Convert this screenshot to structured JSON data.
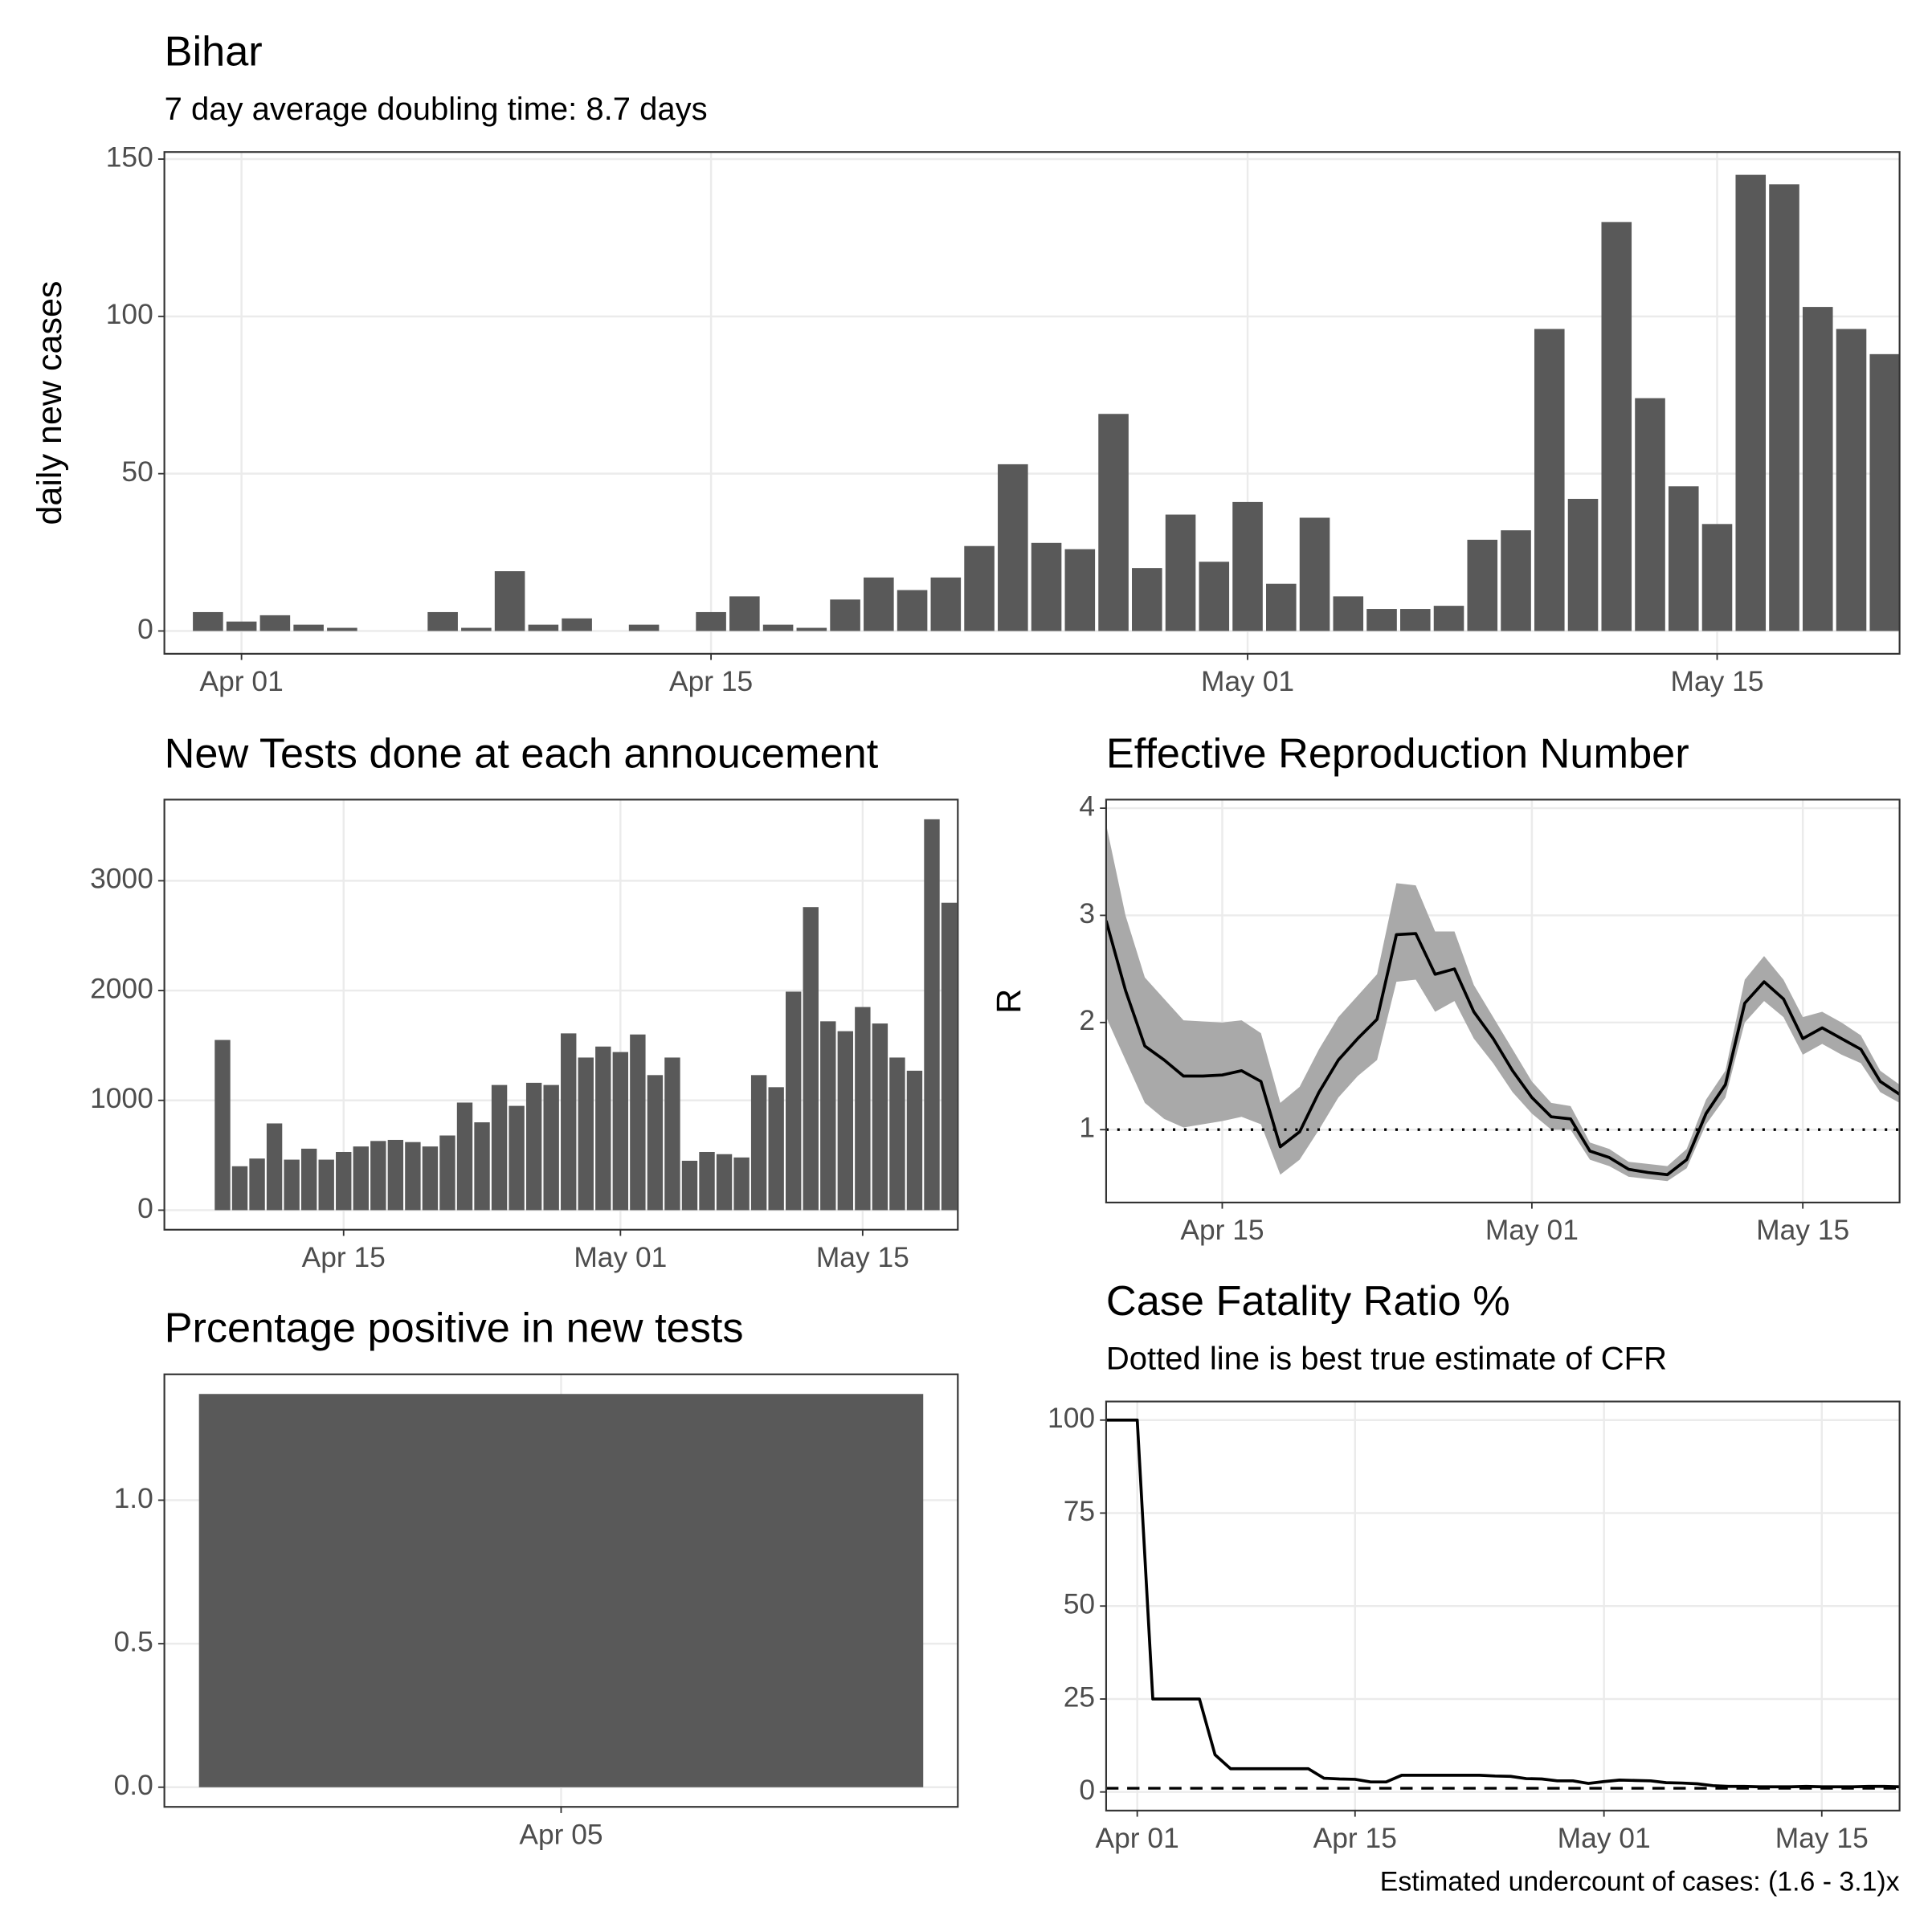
{
  "chart_data": [
    {
      "type": "bar",
      "title": "Bihar",
      "subtitle": "7 day average doubling time: 8.7 days",
      "y_label": "daily new cases",
      "x": [
        "Mar 31",
        "Apr 01",
        "Apr 02",
        "Apr 03",
        "Apr 04",
        "Apr 05",
        "Apr 06",
        "Apr 07",
        "Apr 08",
        "Apr 09",
        "Apr 10",
        "Apr 11",
        "Apr 12",
        "Apr 13",
        "Apr 14",
        "Apr 15",
        "Apr 16",
        "Apr 17",
        "Apr 18",
        "Apr 19",
        "Apr 20",
        "Apr 21",
        "Apr 22",
        "Apr 23",
        "Apr 24",
        "Apr 25",
        "Apr 26",
        "Apr 27",
        "Apr 28",
        "Apr 29",
        "Apr 30",
        "May 01",
        "May 02",
        "May 03",
        "May 04",
        "May 05",
        "May 06",
        "May 07",
        "May 08",
        "May 09",
        "May 10",
        "May 11",
        "May 12",
        "May 13",
        "May 14",
        "May 15",
        "May 16",
        "May 17",
        "May 18",
        "May 19",
        "May 20"
      ],
      "values": [
        6,
        3,
        5,
        2,
        1,
        0,
        0,
        6,
        1,
        19,
        2,
        4,
        0,
        2,
        0,
        6,
        11,
        2,
        1,
        10,
        17,
        13,
        17,
        27,
        53,
        28,
        26,
        69,
        20,
        37,
        22,
        41,
        15,
        36,
        11,
        7,
        7,
        8,
        29,
        32,
        96,
        42,
        130,
        74,
        46,
        34,
        145,
        142,
        103,
        96,
        88
      ],
      "color": "#595959",
      "ylim": [
        -7.25,
        152.25
      ],
      "yticks": [
        0,
        50,
        100,
        150
      ],
      "xticks": [
        "Apr 01",
        "Apr 15",
        "May 01",
        "May 15"
      ],
      "grid": true
    },
    {
      "type": "bar",
      "title": "New Tests done at each annoucement",
      "x": [
        "Apr 08",
        "Apr 09",
        "Apr 10",
        "Apr 11",
        "Apr 12",
        "Apr 13",
        "Apr 14",
        "Apr 15",
        "Apr 16",
        "Apr 17",
        "Apr 18",
        "Apr 19",
        "Apr 20",
        "Apr 21",
        "Apr 22",
        "Apr 23",
        "Apr 24",
        "Apr 25",
        "Apr 26",
        "Apr 27",
        "Apr 28",
        "Apr 29",
        "Apr 30",
        "May 01",
        "May 02",
        "May 03",
        "May 04",
        "May 05",
        "May 06",
        "May 07",
        "May 08",
        "May 09",
        "May 10",
        "May 11",
        "May 12",
        "May 13",
        "May 14",
        "May 15",
        "May 16",
        "May 17",
        "May 18",
        "May 19",
        "May 20"
      ],
      "values": [
        1550,
        400,
        470,
        790,
        460,
        560,
        460,
        530,
        580,
        630,
        640,
        620,
        580,
        680,
        980,
        800,
        1140,
        950,
        1160,
        1140,
        1610,
        1390,
        1490,
        1440,
        1600,
        1230,
        1390,
        450,
        530,
        510,
        480,
        1230,
        1120,
        1990,
        2760,
        1720,
        1630,
        1850,
        1700,
        1390,
        1270,
        3560,
        2800
      ],
      "color": "#595959",
      "ylim": [
        -178,
        3739
      ],
      "yticks": [
        0,
        1000,
        2000,
        3000
      ],
      "xticks": [
        "Apr 15",
        "May 01",
        "May 15"
      ],
      "grid": true
    },
    {
      "type": "line",
      "title": "Effective Reproduction Number",
      "y_label": "R",
      "x": [
        "Apr 09",
        "Apr 10",
        "Apr 11",
        "Apr 12",
        "Apr 13",
        "Apr 14",
        "Apr 15",
        "Apr 16",
        "Apr 17",
        "Apr 18",
        "Apr 19",
        "Apr 20",
        "Apr 21",
        "Apr 22",
        "Apr 23",
        "Apr 24",
        "Apr 25",
        "Apr 26",
        "Apr 27",
        "Apr 28",
        "Apr 29",
        "Apr 30",
        "May 01",
        "May 02",
        "May 03",
        "May 04",
        "May 05",
        "May 06",
        "May 07",
        "May 08",
        "May 09",
        "May 10",
        "May 11",
        "May 12",
        "May 13",
        "May 14",
        "May 15",
        "May 16",
        "May 17",
        "May 18",
        "May 19",
        "May 20"
      ],
      "values": [
        2.95,
        2.3,
        1.78,
        1.65,
        1.5,
        1.5,
        1.51,
        1.55,
        1.45,
        0.84,
        0.98,
        1.35,
        1.65,
        1.85,
        2.03,
        2.82,
        2.83,
        2.45,
        2.5,
        2.1,
        1.85,
        1.55,
        1.3,
        1.12,
        1.1,
        0.8,
        0.74,
        0.63,
        0.6,
        0.58,
        0.72,
        1.15,
        1.42,
        2.18,
        2.38,
        2.22,
        1.85,
        1.95,
        1.85,
        1.75,
        1.45,
        1.33
      ],
      "upper": [
        3.85,
        3.0,
        2.42,
        2.22,
        2.02,
        2.01,
        2.0,
        2.02,
        1.9,
        1.25,
        1.4,
        1.75,
        2.05,
        2.25,
        2.45,
        3.3,
        3.28,
        2.85,
        2.85,
        2.35,
        2.05,
        1.75,
        1.45,
        1.25,
        1.22,
        0.88,
        0.82,
        0.7,
        0.68,
        0.66,
        0.82,
        1.28,
        1.55,
        2.4,
        2.62,
        2.4,
        2.05,
        2.1,
        2.0,
        1.88,
        1.55,
        1.42
      ],
      "lower": [
        2.05,
        1.65,
        1.25,
        1.1,
        1.02,
        1.05,
        1.08,
        1.12,
        1.05,
        0.58,
        0.72,
        1.0,
        1.3,
        1.5,
        1.65,
        2.38,
        2.4,
        2.1,
        2.2,
        1.85,
        1.62,
        1.35,
        1.15,
        1.0,
        1.0,
        0.72,
        0.66,
        0.56,
        0.54,
        0.52,
        0.64,
        1.05,
        1.3,
        2.0,
        2.2,
        2.05,
        1.7,
        1.8,
        1.7,
        1.62,
        1.35,
        1.25
      ],
      "color": "#000000",
      "band_color": "#a9a9a9",
      "reference": 1,
      "reference_style": "dotted",
      "ylim": [
        0.32,
        4.08
      ],
      "yticks": [
        1,
        2,
        3,
        4
      ],
      "xticks": [
        "Apr 15",
        "May 01",
        "May 15"
      ],
      "grid": true
    },
    {
      "type": "bar",
      "title": "Prcentage positive in new tests",
      "x": [
        "Apr 05"
      ],
      "values": [
        1.37
      ],
      "color": "#595959",
      "ylim": [
        -0.0685,
        1.4385
      ],
      "yticks": [
        {
          "value": 0,
          "label": "0.0"
        },
        {
          "value": 0.5,
          "label": "0.5"
        },
        {
          "value": 1,
          "label": "1.0"
        }
      ],
      "xticks": [
        "Apr 05"
      ],
      "grid": true
    },
    {
      "type": "line",
      "title": "Case Fatality Ratio %",
      "subtitle": "Dotted line is best true estimate of CFR",
      "caption": "Estimated undercount of cases: (1.6 - 3.1)x",
      "x": [
        "Mar 30",
        "Mar 31",
        "Apr 01",
        "Apr 02",
        "Apr 03",
        "Apr 04",
        "Apr 05",
        "Apr 06",
        "Apr 07",
        "Apr 08",
        "Apr 09",
        "Apr 10",
        "Apr 11",
        "Apr 12",
        "Apr 13",
        "Apr 14",
        "Apr 15",
        "Apr 16",
        "Apr 17",
        "Apr 18",
        "Apr 19",
        "Apr 20",
        "Apr 21",
        "Apr 22",
        "Apr 23",
        "Apr 24",
        "Apr 25",
        "Apr 26",
        "Apr 27",
        "Apr 28",
        "Apr 29",
        "Apr 30",
        "May 01",
        "May 02",
        "May 03",
        "May 04",
        "May 05",
        "May 06",
        "May 07",
        "May 08",
        "May 09",
        "May 10",
        "May 11",
        "May 12",
        "May 13",
        "May 14",
        "May 15",
        "May 16",
        "May 17",
        "May 18",
        "May 19",
        "May 20"
      ],
      "values": [
        100,
        100,
        100,
        25,
        25,
        25,
        25,
        10,
        6.25,
        6.25,
        6.25,
        6.25,
        6.25,
        6.25,
        3.7,
        3.5,
        3.4,
        2.7,
        2.7,
        4.5,
        4.5,
        4.5,
        4.5,
        4.5,
        4.5,
        4.3,
        4.2,
        3.6,
        3.5,
        3.0,
        3.0,
        2.3,
        2.8,
        3.2,
        3.1,
        3.0,
        2.5,
        2.4,
        2.2,
        1.7,
        1.5,
        1.5,
        1.4,
        1.4,
        1.4,
        1.5,
        1.4,
        1.4,
        1.4,
        1.5,
        1.5,
        1.4
      ],
      "color": "#000000",
      "reference": 1,
      "reference_style": "dashed",
      "ylim": [
        -5,
        105
      ],
      "yticks": [
        0,
        25,
        50,
        75,
        100
      ],
      "xticks": [
        "Apr 01",
        "Apr 15",
        "May 01",
        "May 15"
      ],
      "grid": true
    }
  ]
}
